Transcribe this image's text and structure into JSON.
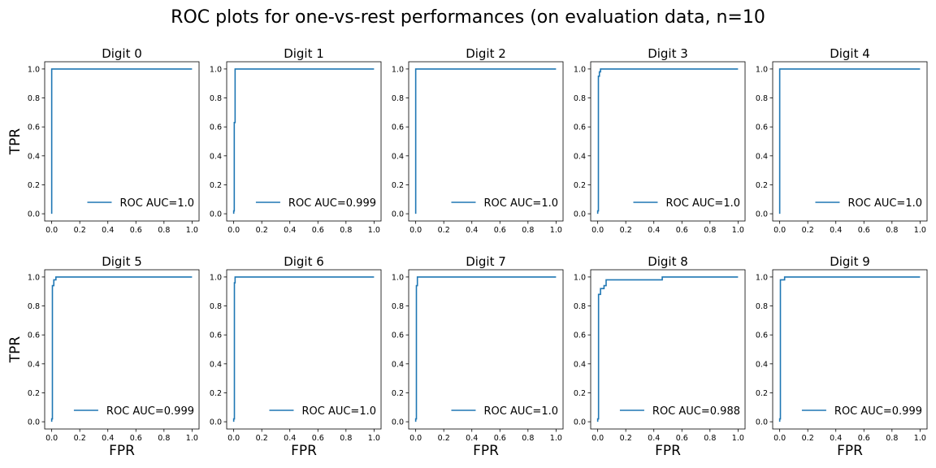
{
  "chart_data": {
    "type": "line",
    "title": "ROC plots for one-vs-rest performances (on evaluation data, n=10",
    "xlabel": "FPR",
    "ylabel": "TPR",
    "xlim": [
      -0.05,
      1.05
    ],
    "ylim": [
      -0.05,
      1.05
    ],
    "xticks": [
      "0.0",
      "0.2",
      "0.4",
      "0.6",
      "0.8",
      "1.0"
    ],
    "yticks": [
      "0.0",
      "0.2",
      "0.4",
      "0.6",
      "0.8",
      "1.0"
    ],
    "line_color": "#1f77b4",
    "legend_placement": "lower-right",
    "panels": [
      {
        "title": "Digit 0",
        "legend": "ROC AUC=1.0",
        "x": [
          0,
          0,
          0,
          1
        ],
        "y": [
          0,
          0.02,
          1.0,
          1.0
        ]
      },
      {
        "title": "Digit 1",
        "legend": "ROC AUC=0.999",
        "x": [
          0,
          0,
          0.004,
          0.004,
          0.01,
          0.01,
          1
        ],
        "y": [
          0,
          0.02,
          0.02,
          0.63,
          0.63,
          1.0,
          1.0
        ]
      },
      {
        "title": "Digit 2",
        "legend": "ROC AUC=1.0",
        "x": [
          0,
          0,
          0,
          1
        ],
        "y": [
          0,
          0.02,
          1.0,
          1.0
        ]
      },
      {
        "title": "Digit 3",
        "legend": "ROC AUC=1.0",
        "x": [
          0,
          0,
          0.005,
          0.005,
          0.012,
          0.012,
          0.02,
          0.02,
          1
        ],
        "y": [
          0,
          0.02,
          0.02,
          0.95,
          0.95,
          0.98,
          0.98,
          1.0,
          1.0
        ]
      },
      {
        "title": "Digit 4",
        "legend": "ROC AUC=1.0",
        "x": [
          0,
          0,
          0,
          1
        ],
        "y": [
          0,
          0.02,
          1.0,
          1.0
        ]
      },
      {
        "title": "Digit 5",
        "legend": "ROC AUC=0.999",
        "x": [
          0,
          0,
          0.005,
          0.005,
          0.015,
          0.015,
          0.03,
          0.03,
          1
        ],
        "y": [
          0,
          0.02,
          0.02,
          0.94,
          0.94,
          0.98,
          0.98,
          1.0,
          1.0
        ]
      },
      {
        "title": "Digit 6",
        "legend": "ROC AUC=1.0",
        "x": [
          0,
          0,
          0.005,
          0.005,
          0.01,
          0.01,
          1
        ],
        "y": [
          0,
          0.02,
          0.02,
          0.96,
          0.96,
          1.0,
          1.0
        ]
      },
      {
        "title": "Digit 7",
        "legend": "ROC AUC=1.0",
        "x": [
          0,
          0,
          0.005,
          0.005,
          0.012,
          0.012,
          1
        ],
        "y": [
          0,
          0.02,
          0.02,
          0.94,
          0.94,
          1.0,
          1.0
        ]
      },
      {
        "title": "Digit 8",
        "legend": "ROC AUC=0.988",
        "x": [
          0,
          0,
          0.006,
          0.006,
          0.02,
          0.02,
          0.045,
          0.045,
          0.06,
          0.06,
          0.46,
          0.46,
          1
        ],
        "y": [
          0,
          0.02,
          0.02,
          0.88,
          0.88,
          0.92,
          0.92,
          0.94,
          0.94,
          0.98,
          0.98,
          1.0,
          1.0
        ]
      },
      {
        "title": "Digit 9",
        "legend": "ROC AUC=0.999",
        "x": [
          0,
          0,
          0.005,
          0.005,
          0.035,
          0.035,
          1
        ],
        "y": [
          0,
          0.02,
          0.02,
          0.98,
          0.98,
          1.0,
          1.0
        ]
      }
    ]
  }
}
